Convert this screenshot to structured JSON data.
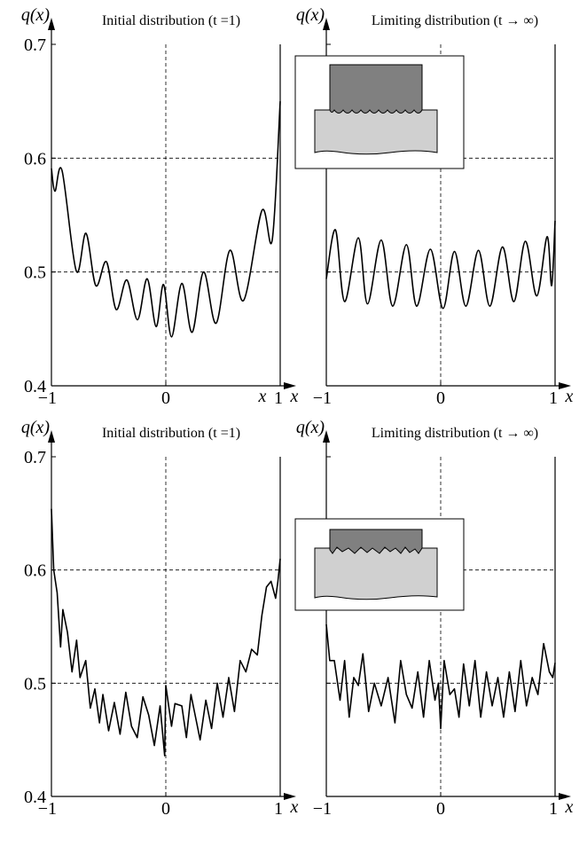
{
  "chart_data": [
    {
      "type": "line",
      "title": "Initial distribution (t =1)",
      "y_label": "q(x)",
      "x_label": "x",
      "annotation": "x",
      "smooth": true,
      "grid": true,
      "color": "#000000",
      "xlim": [
        -1,
        1
      ],
      "ylim": [
        0.4,
        0.7
      ],
      "xticks": [
        {
          "value": -1,
          "label": "−1"
        },
        0,
        1
      ],
      "yticks": [
        0.4,
        0.5,
        0.6,
        0.7
      ],
      "show_ytick_labels": true,
      "x": [
        -1,
        -0.969,
        -0.907,
        -0.783,
        -0.698,
        -0.612,
        -0.519,
        -0.434,
        -0.341,
        -0.248,
        -0.163,
        -0.085,
        -0.02,
        0.05,
        0.14,
        0.23,
        0.33,
        0.44,
        0.56,
        0.68,
        0.84,
        0.93,
        1
      ],
      "values": [
        0.591,
        0.571,
        0.589,
        0.501,
        0.534,
        0.488,
        0.509,
        0.467,
        0.493,
        0.458,
        0.494,
        0.452,
        0.489,
        0.443,
        0.49,
        0.447,
        0.5,
        0.455,
        0.519,
        0.475,
        0.554,
        0.528,
        0.65
      ]
    },
    {
      "type": "line",
      "title": "Limiting distribution (t → ∞)",
      "y_label": "q(x)",
      "x_label": "x",
      "smooth": true,
      "grid": true,
      "color": "#000000",
      "xlim": [
        -1,
        1
      ],
      "ylim": [
        0.4,
        0.7
      ],
      "xticks": [
        {
          "value": -1,
          "label": "−1"
        },
        0,
        1
      ],
      "yticks": [
        0.4,
        0.5,
        0.6,
        0.7
      ],
      "show_ytick_labels": false,
      "x": [
        -1,
        -0.92,
        -0.84,
        -0.72,
        -0.64,
        -0.52,
        -0.42,
        -0.3,
        -0.21,
        -0.09,
        0.02,
        0.12,
        0.22,
        0.33,
        0.43,
        0.54,
        0.64,
        0.74,
        0.84,
        0.93,
        0.97,
        1
      ],
      "values": [
        0.494,
        0.537,
        0.474,
        0.53,
        0.472,
        0.528,
        0.47,
        0.524,
        0.47,
        0.52,
        0.468,
        0.518,
        0.47,
        0.519,
        0.47,
        0.522,
        0.474,
        0.527,
        0.479,
        0.531,
        0.488,
        0.545
      ]
    },
    {
      "type": "line",
      "title": "Initial distribution (t =1)",
      "y_label": "q(x)",
      "x_label": "x",
      "smooth": false,
      "grid": true,
      "color": "#000000",
      "xlim": [
        -1,
        1
      ],
      "ylim": [
        0.4,
        0.7
      ],
      "xticks": [
        {
          "value": -1,
          "label": "−1"
        },
        0,
        1
      ],
      "yticks": [
        0.4,
        0.5,
        0.6,
        0.7
      ],
      "show_ytick_labels": true,
      "x": [
        -1,
        -0.98,
        -0.95,
        -0.92,
        -0.9,
        -0.86,
        -0.82,
        -0.78,
        -0.75,
        -0.7,
        -0.66,
        -0.62,
        -0.58,
        -0.55,
        -0.5,
        -0.45,
        -0.4,
        -0.35,
        -0.3,
        -0.25,
        -0.2,
        -0.15,
        -0.1,
        -0.05,
        -0.01,
        0,
        0.05,
        0.08,
        0.14,
        0.18,
        0.22,
        0.27,
        0.3,
        0.35,
        0.4,
        0.45,
        0.5,
        0.55,
        0.6,
        0.65,
        0.7,
        0.75,
        0.8,
        0.84,
        0.88,
        0.92,
        0.96,
        0.98,
        1
      ],
      "values": [
        0.654,
        0.6,
        0.58,
        0.532,
        0.565,
        0.545,
        0.51,
        0.538,
        0.505,
        0.52,
        0.478,
        0.495,
        0.465,
        0.49,
        0.458,
        0.483,
        0.455,
        0.492,
        0.462,
        0.452,
        0.488,
        0.472,
        0.445,
        0.48,
        0.436,
        0.498,
        0.462,
        0.482,
        0.48,
        0.452,
        0.49,
        0.465,
        0.45,
        0.485,
        0.46,
        0.5,
        0.47,
        0.505,
        0.475,
        0.52,
        0.51,
        0.53,
        0.525,
        0.56,
        0.585,
        0.59,
        0.575,
        0.59,
        0.61
      ]
    },
    {
      "type": "line",
      "title": "Limiting distribution (t → ∞)",
      "y_label": "q(x)",
      "x_label": "x",
      "smooth": false,
      "grid": true,
      "color": "#000000",
      "xlim": [
        -1,
        1
      ],
      "ylim": [
        0.4,
        0.7
      ],
      "xticks": [
        {
          "value": -1,
          "label": "−1"
        },
        0,
        1
      ],
      "yticks": [
        0.4,
        0.5,
        0.6,
        0.7
      ],
      "show_ytick_labels": false,
      "x": [
        -1,
        -0.97,
        -0.93,
        -0.88,
        -0.84,
        -0.8,
        -0.76,
        -0.72,
        -0.68,
        -0.63,
        -0.58,
        -0.52,
        -0.46,
        -0.4,
        -0.35,
        -0.3,
        -0.25,
        -0.2,
        -0.15,
        -0.1,
        -0.05,
        -0.02,
        0,
        0.03,
        0.08,
        0.12,
        0.16,
        0.2,
        0.25,
        0.3,
        0.35,
        0.4,
        0.45,
        0.5,
        0.55,
        0.6,
        0.65,
        0.7,
        0.75,
        0.8,
        0.85,
        0.9,
        0.95,
        0.98,
        1
      ],
      "values": [
        0.552,
        0.52,
        0.52,
        0.485,
        0.52,
        0.47,
        0.505,
        0.498,
        0.526,
        0.475,
        0.5,
        0.48,
        0.505,
        0.465,
        0.52,
        0.49,
        0.478,
        0.51,
        0.47,
        0.52,
        0.485,
        0.5,
        0.46,
        0.52,
        0.49,
        0.495,
        0.47,
        0.517,
        0.48,
        0.52,
        0.47,
        0.51,
        0.48,
        0.505,
        0.47,
        0.51,
        0.475,
        0.52,
        0.48,
        0.505,
        0.49,
        0.535,
        0.51,
        0.505,
        0.518
      ]
    }
  ]
}
